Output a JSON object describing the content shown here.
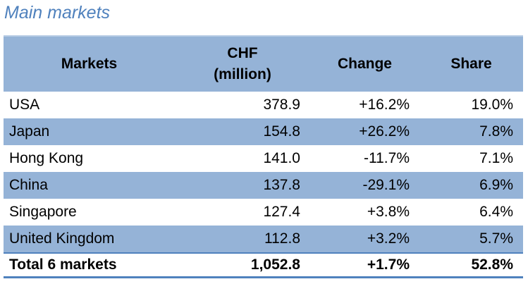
{
  "title": "Main markets",
  "table": {
    "header": [
      "Markets",
      [
        "CHF",
        "(million)"
      ],
      "Change",
      "Share"
    ],
    "rows": [
      [
        "USA",
        "378.9",
        "+16.2%",
        "19.0%"
      ],
      [
        "Japan",
        "154.8",
        "+26.2%",
        "7.8%"
      ],
      [
        "Hong Kong",
        "141.0",
        "-11.7%",
        "7.1%"
      ],
      [
        "China",
        "137.8",
        "-29.1%",
        "6.9%"
      ],
      [
        "Singapore",
        "127.4",
        "+3.8%",
        "6.4%"
      ],
      [
        "United Kingdom",
        "112.8",
        "+3.2%",
        "5.7%"
      ]
    ],
    "total": [
      "Total 6 markets",
      "1,052.8",
      "+1.7%",
      "52.8%"
    ]
  }
}
